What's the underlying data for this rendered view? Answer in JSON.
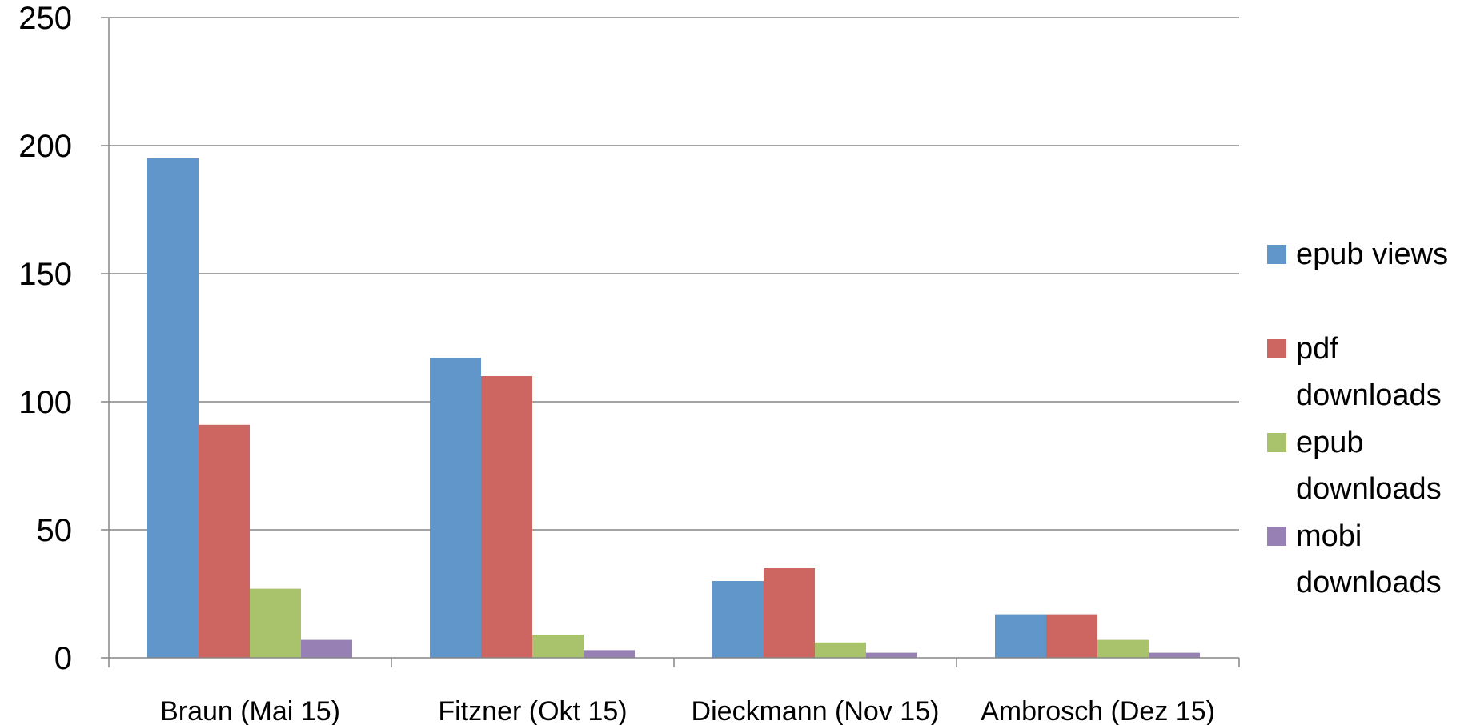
{
  "chart_data": {
    "type": "bar",
    "categories": [
      "Braun (Mai 15)",
      "Fitzner (Okt 15)",
      "Dieckmann (Nov 15)",
      "Ambrosch (Dez 15)"
    ],
    "series": [
      {
        "name": "epub views",
        "values": [
          195,
          117,
          30,
          17
        ],
        "color": "#6096C9",
        "legend_lines": [
          "epub views"
        ]
      },
      {
        "name": "pdf downloads",
        "values": [
          91,
          110,
          35,
          17
        ],
        "color": "#CD6660",
        "legend_lines": [
          "pdf",
          "downloads"
        ]
      },
      {
        "name": "epub downloads",
        "values": [
          27,
          9,
          6,
          7
        ],
        "color": "#A9C36C",
        "legend_lines": [
          "epub",
          "downloads"
        ]
      },
      {
        "name": "mobi downloads",
        "values": [
          7,
          3,
          2,
          2
        ],
        "color": "#9780B4",
        "legend_lines": [
          "mobi",
          "downloads"
        ]
      }
    ],
    "ylim": [
      0,
      250
    ],
    "yticks": [
      "0",
      "50",
      "100",
      "150",
      "200",
      "250"
    ],
    "grid": true,
    "legend_position": "right"
  }
}
